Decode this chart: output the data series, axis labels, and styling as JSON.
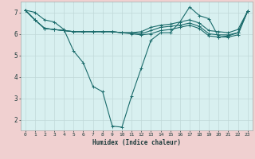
{
  "xlabel": "Humidex (Indice chaleur)",
  "ylabel": "",
  "xlim": [
    -0.5,
    23.5
  ],
  "ylim": [
    1.5,
    7.5
  ],
  "yticks": [
    2,
    3,
    4,
    5,
    6,
    7
  ],
  "xticks": [
    0,
    1,
    2,
    3,
    4,
    5,
    6,
    7,
    8,
    9,
    10,
    11,
    12,
    13,
    14,
    15,
    16,
    17,
    18,
    19,
    20,
    21,
    22,
    23
  ],
  "bg_outer": "#f0d0d0",
  "bg_inner": "#d8f0f0",
  "grid_color": "#c0d8d8",
  "line_color": "#1a6b6b",
  "line1_x": [
    0,
    1,
    2,
    3,
    4,
    5,
    6,
    7,
    8,
    9,
    10,
    11,
    12,
    13,
    14,
    15,
    16,
    17,
    18,
    19,
    20,
    21,
    22,
    23
  ],
  "line1_y": [
    7.1,
    7.0,
    6.65,
    6.55,
    6.2,
    5.2,
    4.65,
    3.55,
    3.3,
    1.7,
    1.65,
    3.1,
    4.4,
    5.7,
    6.05,
    6.05,
    6.55,
    7.25,
    6.85,
    6.7,
    5.85,
    5.9,
    6.05,
    7.05
  ],
  "line2_x": [
    0,
    1,
    2,
    3,
    4,
    5,
    6,
    7,
    8,
    9,
    10,
    11,
    12,
    13,
    14,
    15,
    16,
    17,
    18,
    19,
    20,
    21,
    22,
    23
  ],
  "line2_y": [
    7.1,
    6.65,
    6.25,
    6.2,
    6.15,
    6.1,
    6.1,
    6.1,
    6.1,
    6.1,
    6.05,
    6.05,
    6.1,
    6.3,
    6.4,
    6.45,
    6.55,
    6.65,
    6.5,
    6.15,
    6.1,
    6.05,
    6.2,
    7.05
  ],
  "line3_x": [
    0,
    1,
    2,
    3,
    4,
    5,
    6,
    7,
    8,
    9,
    10,
    11,
    12,
    13,
    14,
    15,
    16,
    17,
    18,
    19,
    20,
    21,
    22,
    23
  ],
  "line3_y": [
    7.1,
    6.65,
    6.25,
    6.2,
    6.15,
    6.1,
    6.1,
    6.1,
    6.1,
    6.1,
    6.05,
    6.05,
    6.0,
    6.15,
    6.3,
    6.35,
    6.4,
    6.5,
    6.35,
    6.0,
    5.95,
    5.95,
    6.05,
    7.05
  ],
  "line4_x": [
    0,
    1,
    2,
    3,
    4,
    5,
    6,
    7,
    8,
    9,
    10,
    11,
    12,
    13,
    14,
    15,
    16,
    17,
    18,
    19,
    20,
    21,
    22,
    23
  ],
  "line4_y": [
    7.1,
    6.65,
    6.25,
    6.2,
    6.15,
    6.1,
    6.1,
    6.1,
    6.1,
    6.1,
    6.05,
    6.0,
    5.95,
    6.0,
    6.15,
    6.2,
    6.3,
    6.4,
    6.25,
    5.9,
    5.85,
    5.85,
    5.95,
    7.05
  ]
}
